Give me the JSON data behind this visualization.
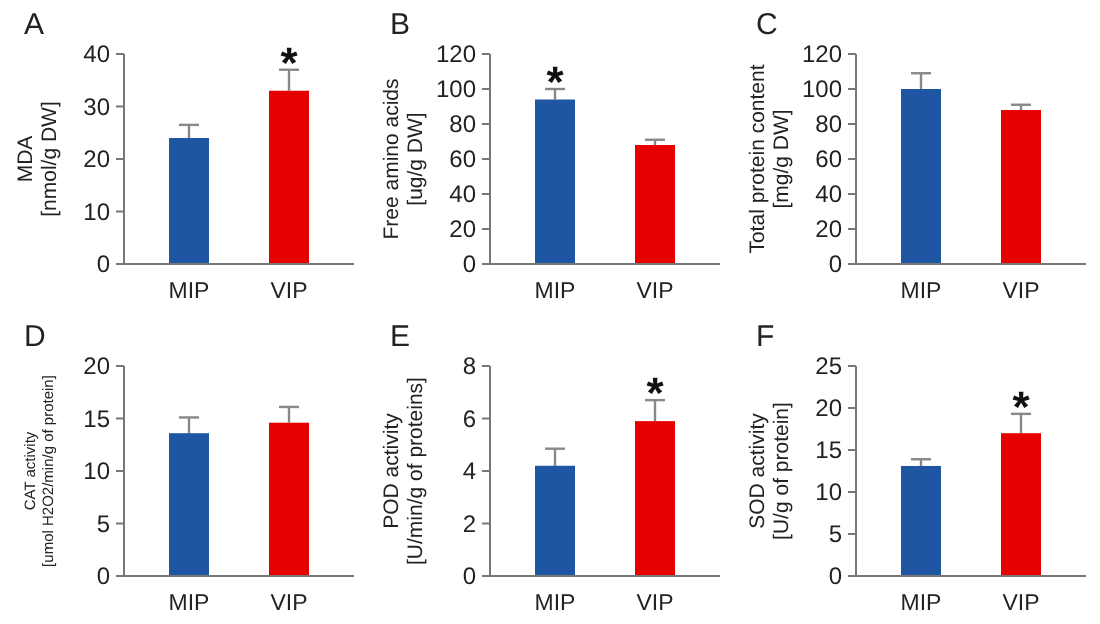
{
  "chart_data": [
    {
      "type": "bar",
      "title": "A",
      "ylabel": "MDA\n[nmol/g DW]",
      "categories": [
        "MIP",
        "VIP"
      ],
      "values": [
        24,
        33
      ],
      "colors": [
        "#1f56a3",
        "#e60000"
      ],
      "errors": [
        2.5,
        4
      ],
      "ylim": [
        0,
        40
      ],
      "yticks": [
        0,
        10,
        20,
        30,
        40
      ],
      "annotations": [
        {
          "text": "*",
          "x": "VIP"
        }
      ]
    },
    {
      "type": "bar",
      "title": "B",
      "ylabel": "Free amino acids\n[ug/g DW]",
      "categories": [
        "MIP",
        "VIP"
      ],
      "values": [
        94,
        68
      ],
      "colors": [
        "#1f56a3",
        "#e60000"
      ],
      "errors": [
        6,
        3
      ],
      "ylim": [
        0,
        120
      ],
      "yticks": [
        0,
        20,
        40,
        60,
        80,
        100,
        120
      ],
      "annotations": [
        {
          "text": "*",
          "x": "MIP"
        }
      ]
    },
    {
      "type": "bar",
      "title": "C",
      "ylabel": "Total protein content\n[mg/g DW]",
      "categories": [
        "MIP",
        "VIP"
      ],
      "values": [
        100,
        88
      ],
      "colors": [
        "#1f56a3",
        "#e60000"
      ],
      "errors": [
        9,
        3
      ],
      "ylim": [
        0,
        120
      ],
      "yticks": [
        0,
        20,
        40,
        60,
        80,
        100,
        120
      ]
    },
    {
      "type": "bar",
      "title": "D",
      "ylabel": "CAT activity\n[umol H2O2/min/g of protein]",
      "categories": [
        "MIP",
        "VIP"
      ],
      "values": [
        13.6,
        14.6
      ],
      "colors": [
        "#1f56a3",
        "#e60000"
      ],
      "errors": [
        1.5,
        1.5
      ],
      "ylim": [
        0,
        20
      ],
      "yticks": [
        0,
        5,
        10,
        15,
        20
      ]
    },
    {
      "type": "bar",
      "title": "E",
      "ylabel": "POD activity\n[U/min/g of proteins]",
      "categories": [
        "MIP",
        "VIP"
      ],
      "values": [
        4.2,
        5.9
      ],
      "colors": [
        "#1f56a3",
        "#e60000"
      ],
      "errors": [
        0.65,
        0.8
      ],
      "ylim": [
        0,
        8
      ],
      "yticks": [
        0,
        2,
        4,
        6,
        8
      ],
      "annotations": [
        {
          "text": "*",
          "x": "VIP"
        }
      ]
    },
    {
      "type": "bar",
      "title": "F",
      "ylabel": "SOD activity\n[U/g of protein]",
      "categories": [
        "MIP",
        "VIP"
      ],
      "values": [
        13.1,
        17
      ],
      "colors": [
        "#1f56a3",
        "#e60000"
      ],
      "errors": [
        0.8,
        2.3
      ],
      "ylim": [
        0,
        25
      ],
      "yticks": [
        0,
        5,
        10,
        15,
        20,
        25
      ],
      "annotations": [
        {
          "text": "*",
          "x": "VIP"
        }
      ]
    }
  ]
}
